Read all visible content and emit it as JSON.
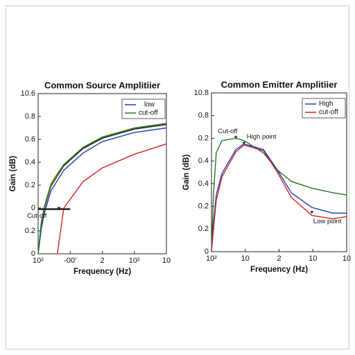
{
  "chart_data": [
    {
      "type": "line",
      "title": "Common Source Amplitiier",
      "xlabel": "Frequency (Hz)",
      "ylabel": "Gain (dB)",
      "x": [
        0,
        0.1,
        0.2,
        0.4,
        0.6,
        0.8,
        1.4,
        2,
        3,
        4
      ],
      "series": [
        {
          "color": "#111111",
          "values": [
            0,
            0.26,
            0.4,
            0.59,
            0.68,
            0.77,
            0.92,
            1.01,
            1.09,
            1.13
          ]
        },
        {
          "color": "#e08a1e",
          "values": [
            0,
            0.27,
            0.41,
            0.6,
            0.69,
            0.78,
            0.93,
            1.02,
            1.1,
            1.14
          ]
        },
        {
          "name": "low",
          "color": "#1f3fbf",
          "values": [
            0,
            0.22,
            0.36,
            0.55,
            0.64,
            0.73,
            0.88,
            0.98,
            1.06,
            1.1
          ]
        },
        {
          "name": "cut-off",
          "color": "#1e7a1e",
          "values": [
            0,
            0.28,
            0.42,
            0.61,
            0.7,
            0.78,
            0.93,
            1.02,
            1.1,
            1.14
          ]
        },
        {
          "color": "#d42020",
          "values": [
            null,
            null,
            null,
            null,
            0,
            0.4,
            0.63,
            0.75,
            0.87,
            0.96
          ]
        }
      ],
      "xlim": [
        0,
        4
      ],
      "xticks": [
        {
          "value": 0,
          "label": "10²"
        },
        {
          "value": 1,
          "label": "-00'"
        },
        2,
        {
          "value": 3,
          "label": "10²"
        },
        {
          "value": 4,
          "label": "10"
        }
      ],
      "ylim": [
        0,
        1.4
      ],
      "yticks": [
        0,
        0.2,
        {
          "value": 0.4,
          "label": "0"
        },
        {
          "value": 0.6,
          "label": "0.2"
        },
        {
          "value": 0.8,
          "label": "0.4"
        },
        {
          "value": 1.0,
          "label": "0.6"
        },
        {
          "value": 1.2,
          "label": "0.8"
        },
        {
          "value": 1.4,
          "label": "10.6"
        }
      ],
      "hlines": [
        {
          "y": 0.39,
          "x": [
            0,
            1.0
          ]
        }
      ],
      "annotations": [
        {
          "text": "Cut-off",
          "x": 0.65,
          "y": 0.39
        }
      ],
      "legend": "upper right"
    },
    {
      "type": "line",
      "title": "Common Emitter Amplitiier",
      "xlabel": "Frequency (Hz)",
      "ylabel": "Gain (dB)",
      "x": [
        0,
        0.06,
        0.14,
        0.31,
        0.72,
        0.96,
        1.54,
        1.95,
        2.36,
        2.97,
        3.59,
        4
      ],
      "series": [
        {
          "color": "#1e7a1e",
          "values": [
            0,
            0.51,
            0.87,
            0.98,
            1.0,
            0.98,
            0.87,
            0.72,
            0.62,
            0.56,
            0.52,
            0.5
          ]
        },
        {
          "name": "High",
          "color": "#1f3fbf",
          "values": [
            0,
            0.25,
            0.5,
            0.69,
            0.9,
            0.95,
            0.9,
            0.72,
            0.52,
            0.39,
            0.34,
            0.34
          ]
        },
        {
          "name": "cut-off",
          "color": "#d42020",
          "values": [
            0,
            0.2,
            0.45,
            0.66,
            0.88,
            0.94,
            0.89,
            0.7,
            0.48,
            0.32,
            0.29,
            0.31
          ]
        }
      ],
      "xlim": [
        0,
        4
      ],
      "xticks": [
        {
          "value": 0,
          "label": "10²"
        },
        {
          "value": 1,
          "label": "10"
        },
        2,
        {
          "value": 3,
          "label": "10"
        },
        {
          "value": 4,
          "label": "10"
        }
      ],
      "ylim": [
        0,
        1.4
      ],
      "yticks": [
        0,
        0.2,
        {
          "value": 0.4,
          "label": "0.2"
        },
        {
          "value": 0.6,
          "label": "0.4"
        },
        {
          "value": 0.8,
          "label": "0.4"
        },
        {
          "value": 1.0,
          "label": "0.2"
        },
        {
          "value": 1.2,
          "label": "0.8"
        },
        {
          "value": 1.4,
          "label": "10.8"
        }
      ],
      "annotations": [
        {
          "text": "Cut-off",
          "x": 0.72,
          "y": 1.0
        },
        {
          "text": "High point",
          "x": 0.96,
          "y": 0.95
        },
        {
          "text": "Low point",
          "x": 2.97,
          "y": 0.34
        }
      ],
      "legend": "upper right"
    }
  ]
}
